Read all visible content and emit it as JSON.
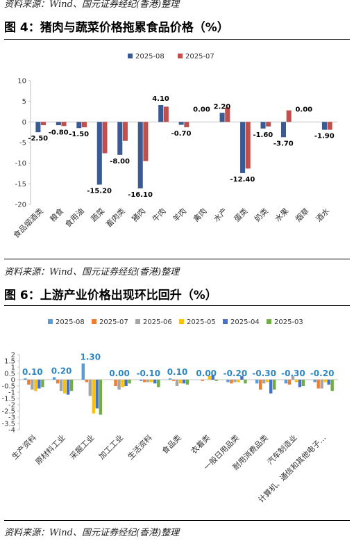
{
  "sources": {
    "top": "资料来源：Wind、国元证券经纪(香港)整理",
    "middle": "资料来源：Wind、国元证券经纪(香港)整理",
    "bottom": "资料来源：Wind、国元证券经纪(香港)整理"
  },
  "figures": {
    "fig4_title": "图 4：猪肉与蔬菜价格拖累食品价格（%）",
    "fig6_title": "图 6：上游产业价格出现环比回升（%）"
  },
  "chart_data": [
    {
      "type": "bar",
      "title": "图 4：猪肉与蔬菜价格拖累食品价格（%）",
      "xlabel": "",
      "ylabel": "",
      "ylim": [
        -20,
        10
      ],
      "yticks": [
        10,
        5,
        0,
        -5,
        -10,
        -15,
        -20
      ],
      "grid": false,
      "legend_position": "top",
      "categories": [
        "食品烟酒类",
        "粮食",
        "食用油",
        "蔬菜",
        "畜肉类",
        "猪肉",
        "牛肉",
        "羊肉",
        "禽肉",
        "水产",
        "蛋类",
        "奶类",
        "水果",
        "烟草",
        "酒水"
      ],
      "series": [
        {
          "name": "2025-08",
          "color": "#3a5a93",
          "values": [
            -2.5,
            -0.8,
            -1.5,
            -15.2,
            -8.0,
            -16.1,
            4.1,
            -0.7,
            0.0,
            2.2,
            -12.4,
            -1.6,
            -3.7,
            0.0,
            -1.9
          ]
        },
        {
          "name": "2025-07",
          "color": "#c0504d",
          "values": [
            -0.8,
            -1.0,
            -1.3,
            -7.6,
            -4.6,
            -9.5,
            3.7,
            -1.3,
            0.0,
            3.5,
            -11.3,
            -1.1,
            2.8,
            0.0,
            -1.9
          ]
        }
      ],
      "data_labels": [
        "-2.50",
        "-0.80",
        "-1.50",
        "-15.20",
        "-8.00",
        "-16.10",
        "4.10",
        "-0.70",
        "0.00",
        "2.20",
        "-12.40",
        "-1.60",
        "-3.70",
        "0.00",
        "-1.90"
      ]
    },
    {
      "type": "bar",
      "title": "图 6：上游产业价格出现环比回升（%）",
      "xlabel": "",
      "ylabel": "",
      "ylim": [
        -4,
        2
      ],
      "yticks": [
        2,
        1.5,
        1,
        0.5,
        0,
        -0.5,
        -1,
        -1.5,
        -2,
        -2.5,
        -3,
        -3.5,
        -4
      ],
      "ytick_labels": [
        "2",
        "1.5",
        "1",
        "0.5",
        "0",
        "-0.5",
        "-1",
        "-1.5",
        "-2",
        "-2.5",
        "-3",
        "-3.5",
        "-4"
      ],
      "grid": false,
      "legend_position": "top",
      "categories": [
        "生产资料",
        "原材料工业",
        "采掘工业",
        "加工工业",
        "生活资料",
        "食品类",
        "衣着类",
        "一般日用品类",
        "耐用消费品类",
        "汽车制造业",
        "计算机、通信和其他电子…"
      ],
      "series": [
        {
          "name": "2025-08",
          "color": "#5b9bd5",
          "values": [
            0.1,
            0.2,
            1.3,
            0.0,
            -0.1,
            0.1,
            0.0,
            -0.2,
            -0.3,
            -0.3,
            -0.2
          ]
        },
        {
          "name": "2025-07",
          "color": "#ed7d31",
          "values": [
            -0.4,
            -0.3,
            -0.2,
            -0.5,
            -0.2,
            -0.1,
            -0.1,
            -0.3,
            -0.8,
            -0.4,
            -0.7
          ]
        },
        {
          "name": "2025-06",
          "color": "#a5a5a5",
          "values": [
            -0.8,
            -0.9,
            -1.3,
            -0.8,
            -0.2,
            -0.5,
            0.0,
            -0.2,
            -0.3,
            0.3,
            -0.7
          ]
        },
        {
          "name": "2025-05",
          "color": "#ffc000",
          "values": [
            -0.9,
            -1.1,
            -2.7,
            -0.6,
            -0.2,
            -0.3,
            0.3,
            -0.2,
            -0.2,
            -0.2,
            -0.2
          ]
        },
        {
          "name": "2025-04",
          "color": "#4472c4",
          "values": [
            -0.7,
            -1.2,
            -2.3,
            -0.5,
            -0.3,
            -0.3,
            0.4,
            0.3,
            -1.1,
            -0.6,
            -0.4
          ]
        },
        {
          "name": "2025-03",
          "color": "#70ad47",
          "values": [
            -0.6,
            -0.9,
            -2.8,
            -0.3,
            -0.6,
            -0.4,
            -0.1,
            -0.3,
            -0.8,
            -0.5,
            -0.9
          ]
        }
      ],
      "data_labels": [
        "0.10",
        "0.20",
        "1.30",
        "0.00",
        "-0.10",
        "0.10",
        "0.00",
        "-0.20",
        "-0.30",
        "-0.30",
        "-0.20"
      ]
    }
  ]
}
